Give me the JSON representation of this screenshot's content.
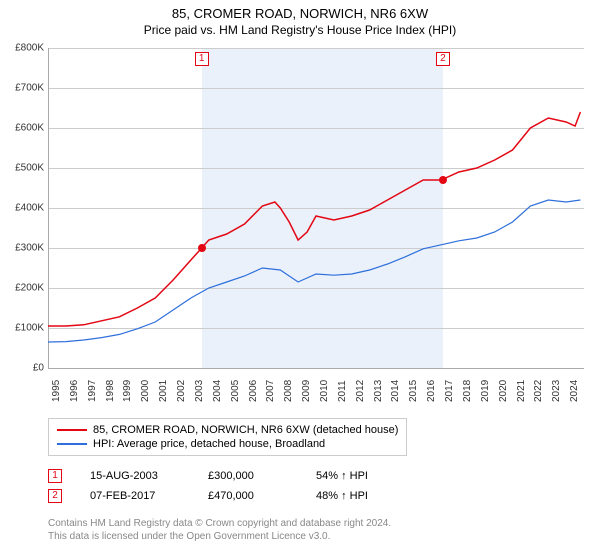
{
  "title": {
    "line1": "85, CROMER ROAD, NORWICH, NR6 6XW",
    "line2": "Price paid vs. HM Land Registry's House Price Index (HPI)"
  },
  "chart": {
    "type": "line",
    "background_color": "#ffffff",
    "shade_band_color": "#eaf1fb",
    "grid_color": "#cccccc",
    "axis_color": "#aaaaaa",
    "y": {
      "min": 0,
      "max": 800000,
      "step": 100000,
      "ticks": [
        "£0",
        "£100K",
        "£200K",
        "£300K",
        "£400K",
        "£500K",
        "£600K",
        "£700K",
        "£800K"
      ]
    },
    "x": {
      "min": 1995,
      "max": 2025,
      "ticks": [
        "1995",
        "1996",
        "1997",
        "1998",
        "1999",
        "2000",
        "2001",
        "2002",
        "2003",
        "2004",
        "2005",
        "2006",
        "2007",
        "2008",
        "2009",
        "2010",
        "2011",
        "2012",
        "2013",
        "2014",
        "2015",
        "2016",
        "2017",
        "2018",
        "2019",
        "2020",
        "2021",
        "2022",
        "2023",
        "2024"
      ]
    },
    "shade_band": {
      "from_year": 2003.6,
      "to_year": 2017.1
    },
    "series": [
      {
        "id": "price_paid",
        "label": "85, CROMER ROAD, NORWICH, NR6 6XW (detached house)",
        "color": "#e30613",
        "line_width": 1.5,
        "points": [
          [
            1995.0,
            105000
          ],
          [
            1996.0,
            105000
          ],
          [
            1997.0,
            108000
          ],
          [
            1998.0,
            118000
          ],
          [
            1999.0,
            128000
          ],
          [
            2000.0,
            150000
          ],
          [
            2001.0,
            175000
          ],
          [
            2002.0,
            220000
          ],
          [
            2003.0,
            270000
          ],
          [
            2003.6,
            300000
          ],
          [
            2004.0,
            320000
          ],
          [
            2005.0,
            335000
          ],
          [
            2006.0,
            360000
          ],
          [
            2007.0,
            405000
          ],
          [
            2007.7,
            415000
          ],
          [
            2008.0,
            400000
          ],
          [
            2008.5,
            365000
          ],
          [
            2009.0,
            320000
          ],
          [
            2009.5,
            340000
          ],
          [
            2010.0,
            380000
          ],
          [
            2011.0,
            370000
          ],
          [
            2012.0,
            380000
          ],
          [
            2013.0,
            395000
          ],
          [
            2014.0,
            420000
          ],
          [
            2015.0,
            445000
          ],
          [
            2016.0,
            470000
          ],
          [
            2017.0,
            470000
          ],
          [
            2018.0,
            490000
          ],
          [
            2019.0,
            500000
          ],
          [
            2020.0,
            520000
          ],
          [
            2021.0,
            545000
          ],
          [
            2022.0,
            600000
          ],
          [
            2023.0,
            625000
          ],
          [
            2024.0,
            615000
          ],
          [
            2024.5,
            605000
          ],
          [
            2024.8,
            640000
          ]
        ]
      },
      {
        "id": "hpi",
        "label": "HPI: Average price, detached house, Broadland",
        "color": "#2e6fdb",
        "line_width": 1.2,
        "points": [
          [
            1995.0,
            65000
          ],
          [
            1996.0,
            66000
          ],
          [
            1997.0,
            70000
          ],
          [
            1998.0,
            76000
          ],
          [
            1999.0,
            84000
          ],
          [
            2000.0,
            98000
          ],
          [
            2001.0,
            115000
          ],
          [
            2002.0,
            145000
          ],
          [
            2003.0,
            175000
          ],
          [
            2004.0,
            200000
          ],
          [
            2005.0,
            215000
          ],
          [
            2006.0,
            230000
          ],
          [
            2007.0,
            250000
          ],
          [
            2008.0,
            245000
          ],
          [
            2009.0,
            215000
          ],
          [
            2010.0,
            235000
          ],
          [
            2011.0,
            232000
          ],
          [
            2012.0,
            235000
          ],
          [
            2013.0,
            245000
          ],
          [
            2014.0,
            260000
          ],
          [
            2015.0,
            278000
          ],
          [
            2016.0,
            298000
          ],
          [
            2017.0,
            308000
          ],
          [
            2018.0,
            318000
          ],
          [
            2019.0,
            325000
          ],
          [
            2020.0,
            340000
          ],
          [
            2021.0,
            365000
          ],
          [
            2022.0,
            405000
          ],
          [
            2023.0,
            420000
          ],
          [
            2024.0,
            415000
          ],
          [
            2024.8,
            420000
          ]
        ]
      }
    ],
    "sale_points": [
      {
        "n": "1",
        "year": 2003.6,
        "value": 300000,
        "color": "#e30613"
      },
      {
        "n": "2",
        "year": 2017.1,
        "value": 470000,
        "color": "#e30613"
      }
    ],
    "marker_boxes": [
      {
        "n": "1",
        "year": 2003.6,
        "color": "#e30613"
      },
      {
        "n": "2",
        "year": 2017.1,
        "color": "#e30613"
      }
    ]
  },
  "legend": {
    "items": [
      {
        "color": "#e30613",
        "label": "85, CROMER ROAD, NORWICH, NR6 6XW (detached house)"
      },
      {
        "color": "#2e6fdb",
        "label": "HPI: Average price, detached house, Broadland"
      }
    ]
  },
  "sales": [
    {
      "n": "1",
      "color": "#e30613",
      "date": "15-AUG-2003",
      "price": "£300,000",
      "pct": "54% ↑ HPI"
    },
    {
      "n": "2",
      "color": "#e30613",
      "date": "07-FEB-2017",
      "price": "£470,000",
      "pct": "48% ↑ HPI"
    }
  ],
  "footer": {
    "line1": "Contains HM Land Registry data © Crown copyright and database right 2024.",
    "line2": "This data is licensed under the Open Government Licence v3.0."
  }
}
